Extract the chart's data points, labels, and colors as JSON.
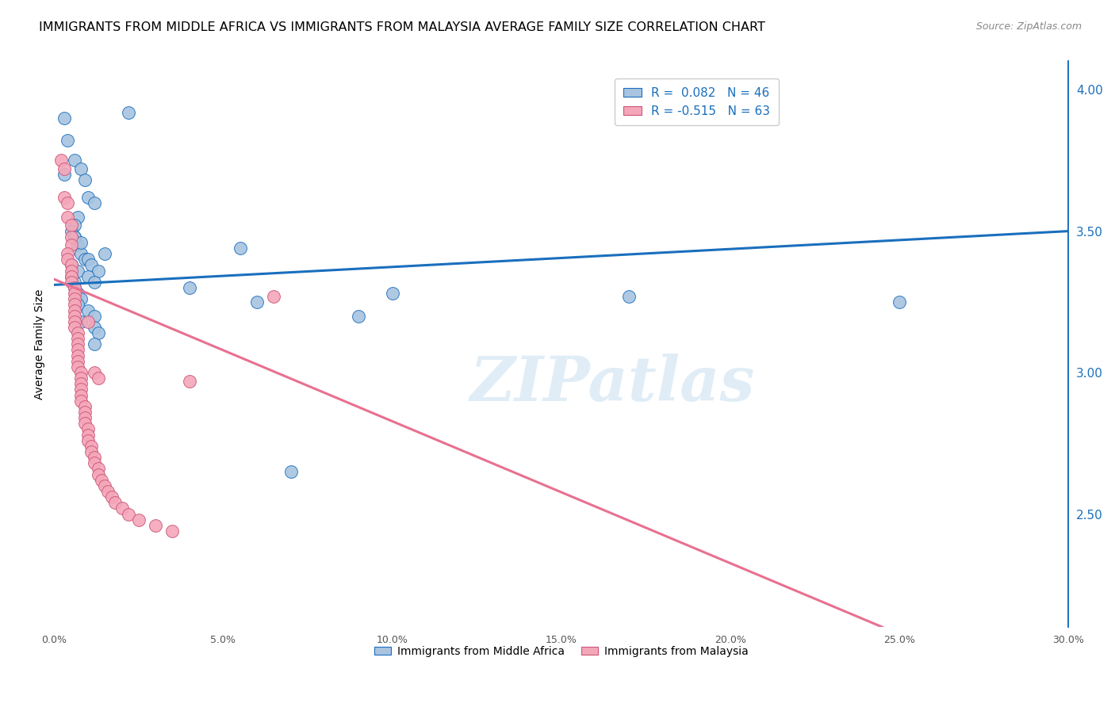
{
  "title": "IMMIGRANTS FROM MIDDLE AFRICA VS IMMIGRANTS FROM MALAYSIA AVERAGE FAMILY SIZE CORRELATION CHART",
  "source": "Source: ZipAtlas.com",
  "ylabel": "Average Family Size",
  "yticks": [
    2.5,
    3.0,
    3.5,
    4.0
  ],
  "xlim": [
    0.0,
    0.3
  ],
  "ylim": [
    2.1,
    4.1
  ],
  "watermark": "ZIPatlas",
  "legend_r1": "R =  0.082",
  "legend_n1": "N = 46",
  "legend_r2": "R = -0.515",
  "legend_n2": "N = 63",
  "color_blue": "#a8c4e0",
  "color_pink": "#f4a7b9",
  "trendline_blue_color": "#1a6fbd",
  "trendline_pink_color": "#e87090",
  "title_fontsize": 11.5,
  "source_fontsize": 9,
  "label_fontsize": 10,
  "blue_points_x": [
    0.003,
    0.022,
    0.006,
    0.008,
    0.009,
    0.01,
    0.012,
    0.007,
    0.006,
    0.005,
    0.006,
    0.007,
    0.008,
    0.009,
    0.005,
    0.007,
    0.005,
    0.006,
    0.006,
    0.007,
    0.008,
    0.007,
    0.01,
    0.012,
    0.008,
    0.012,
    0.013,
    0.015,
    0.01,
    0.011,
    0.013,
    0.01,
    0.012,
    0.012,
    0.004,
    0.003,
    0.006,
    0.008,
    0.04,
    0.055,
    0.06,
    0.1,
    0.09,
    0.25,
    0.07,
    0.17
  ],
  "blue_points_y": [
    3.9,
    3.92,
    3.75,
    3.72,
    3.68,
    3.62,
    3.6,
    3.55,
    3.52,
    3.5,
    3.48,
    3.45,
    3.42,
    3.4,
    3.38,
    3.36,
    3.34,
    3.32,
    3.3,
    3.28,
    3.26,
    3.24,
    3.22,
    3.2,
    3.18,
    3.16,
    3.14,
    3.42,
    3.4,
    3.38,
    3.36,
    3.34,
    3.32,
    3.1,
    3.82,
    3.7,
    3.48,
    3.46,
    3.3,
    3.44,
    3.25,
    3.28,
    3.2,
    3.25,
    2.65,
    3.27
  ],
  "pink_points_x": [
    0.002,
    0.003,
    0.003,
    0.004,
    0.004,
    0.005,
    0.005,
    0.005,
    0.004,
    0.004,
    0.005,
    0.005,
    0.005,
    0.005,
    0.006,
    0.006,
    0.006,
    0.006,
    0.006,
    0.006,
    0.006,
    0.006,
    0.007,
    0.007,
    0.007,
    0.007,
    0.007,
    0.007,
    0.007,
    0.008,
    0.008,
    0.008,
    0.008,
    0.008,
    0.008,
    0.009,
    0.009,
    0.009,
    0.009,
    0.01,
    0.01,
    0.01,
    0.011,
    0.011,
    0.012,
    0.012,
    0.013,
    0.013,
    0.014,
    0.015,
    0.016,
    0.017,
    0.018,
    0.02,
    0.022,
    0.025,
    0.03,
    0.035,
    0.04,
    0.01,
    0.012,
    0.013,
    0.065
  ],
  "pink_points_y": [
    3.75,
    3.72,
    3.62,
    3.6,
    3.55,
    3.52,
    3.48,
    3.45,
    3.42,
    3.4,
    3.38,
    3.36,
    3.34,
    3.32,
    3.3,
    3.28,
    3.26,
    3.24,
    3.22,
    3.2,
    3.18,
    3.16,
    3.14,
    3.12,
    3.1,
    3.08,
    3.06,
    3.04,
    3.02,
    3.0,
    2.98,
    2.96,
    2.94,
    2.92,
    2.9,
    2.88,
    2.86,
    2.84,
    2.82,
    2.8,
    2.78,
    2.76,
    2.74,
    2.72,
    2.7,
    2.68,
    2.66,
    2.64,
    2.62,
    2.6,
    2.58,
    2.56,
    2.54,
    2.52,
    2.5,
    2.48,
    2.46,
    2.44,
    2.97,
    3.18,
    3.0,
    2.98,
    3.27
  ],
  "blue_trend_x": [
    0.0,
    0.3
  ],
  "blue_trend_y": [
    3.31,
    3.5
  ],
  "pink_trend_x": [
    0.0,
    0.245
  ],
  "pink_trend_y": [
    3.33,
    2.1
  ]
}
